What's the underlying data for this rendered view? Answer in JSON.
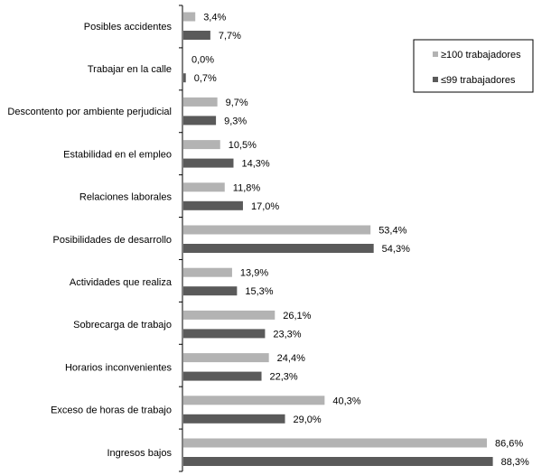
{
  "chart_data": {
    "type": "bar",
    "orientation": "horizontal",
    "title": "",
    "xlabel": "",
    "ylabel": "",
    "xlim": [
      0,
      100
    ],
    "grid": false,
    "legend_position": "top-right",
    "categories": [
      "Posibles accidentes",
      "Trabajar en la calle",
      "Descontento por ambiente perjudicial",
      "Estabilidad en el empleo",
      "Relaciones laborales",
      "Posibilidades de desarrollo",
      "Actividades que realiza",
      "Sobrecarga de trabajo",
      "Horarios inconvenientes",
      "Exceso de horas de trabajo",
      "Ingresos bajos"
    ],
    "series": [
      {
        "name": "≥100 trabajadores",
        "color": "#b3b3b3",
        "values": [
          3.4,
          0.0,
          9.7,
          10.5,
          11.8,
          53.4,
          13.9,
          26.1,
          24.4,
          40.3,
          86.6
        ],
        "labels": [
          "3,4%",
          "0,0%",
          "9,7%",
          "10,5%",
          "11,8%",
          "53,4%",
          "13,9%",
          "26,1%",
          "24,4%",
          "40,3%",
          "86,6%"
        ]
      },
      {
        "name": "≤99 trabajadores",
        "color": "#5a5a5a",
        "values": [
          7.7,
          0.7,
          9.3,
          14.3,
          17.0,
          54.3,
          15.3,
          23.3,
          22.3,
          29.0,
          88.3
        ],
        "labels": [
          "7,7%",
          "0,7%",
          "9,3%",
          "14,3%",
          "17,0%",
          "54,3%",
          "15,3%",
          "23,3%",
          "22,3%",
          "29,0%",
          "88,3%"
        ]
      }
    ]
  }
}
